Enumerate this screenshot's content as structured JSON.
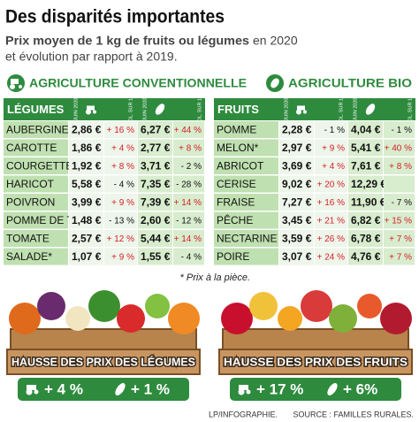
{
  "header": {
    "title": "Des disparités importantes",
    "subtitle_bold": "Prix moyen de 1 kg de fruits ou légumes",
    "subtitle_rest_1": "en 2020",
    "subtitle_rest_2": "et évolution par rapport à 2019."
  },
  "legend": {
    "conventional": "AGRICULTURE CONVENTIONNELLE",
    "bio": "AGRICULTURE BIO"
  },
  "tables": [
    {
      "title": "LÉGUMES",
      "columns": [
        "JUIN 2020",
        "ÉVOL. SUR 1 AN",
        "JUIN 2020",
        "ÉVOL. SUR 1 AN"
      ],
      "rows": [
        [
          "AUBERGINE",
          "2,86 €",
          "+ 16 %",
          "6,27 €",
          "+ 44 %"
        ],
        [
          "CAROTTE",
          "1,86 €",
          "+ 4 %",
          "2,77 €",
          "+ 8 %"
        ],
        [
          "COURGETTE",
          "1,92 €",
          "+ 8 %",
          "3,71 €",
          "- 2 %"
        ],
        [
          "HARICOT",
          "5,58 €",
          "- 4 %",
          "7,35 €",
          "- 28 %"
        ],
        [
          "POIVRON",
          "3,99 €",
          "+ 9 %",
          "7,39 €",
          "+ 14 %"
        ],
        [
          "POMME DE T.",
          "1,48 €",
          "- 13 %",
          "2,60 €",
          "- 12 %"
        ],
        [
          "TOMATE",
          "2,57 €",
          "+ 12 %",
          "5,44 €",
          "+ 14 %"
        ],
        [
          "SALADE*",
          "1,07 €",
          "+ 9 %",
          "1,55 €",
          "- 4 %"
        ]
      ]
    },
    {
      "title": "FRUITS",
      "columns": [
        "JUIN 2020",
        "ÉVOL. SUR 1 AN",
        "JUIN 2020",
        "ÉVOL. SUR 1 AN"
      ],
      "rows": [
        [
          "POMME",
          "2,28 €",
          "- 1 %",
          "4,04 €",
          "- 1 %"
        ],
        [
          "MELON*",
          "2,97 €",
          "+ 9 %",
          "5,41 €",
          "+ 40 %"
        ],
        [
          "ABRICOT",
          "3,69 €",
          "+ 4 %",
          "7,61 €",
          "+ 8 %"
        ],
        [
          "CERISE",
          "9,02 €",
          "+ 20 %",
          "12,29 €",
          null
        ],
        [
          "FRAISE",
          "7,27 €",
          "+ 16 %",
          "11,90 €",
          "- 7 %"
        ],
        [
          "PÊCHE",
          "3,45 €",
          "+ 21 %",
          "6,82 €",
          "+ 15 %"
        ],
        [
          "NECTARINE",
          "3,59 €",
          "+ 26 %",
          "6,78 €",
          "+ 7 %"
        ],
        [
          "POIRE",
          "3,07 €",
          "+ 24 %",
          "4,76 €",
          "+ 7 %"
        ]
      ]
    }
  ],
  "note": "* Prix à la pièce.",
  "summaries": [
    {
      "title": "HAUSSE DES PRIX DES LÉGUMES",
      "conventional": "+ 4 %",
      "bio": "+ 1 %"
    },
    {
      "title": "HAUSSE DES PRIX DES FRUITS",
      "conventional": "+ 17 %",
      "bio": "+ 6%"
    }
  ],
  "footer": {
    "credit": "LP/INFOGRAPHIE.",
    "source": "SOURCE : FAMILLES RURALES."
  }
}
